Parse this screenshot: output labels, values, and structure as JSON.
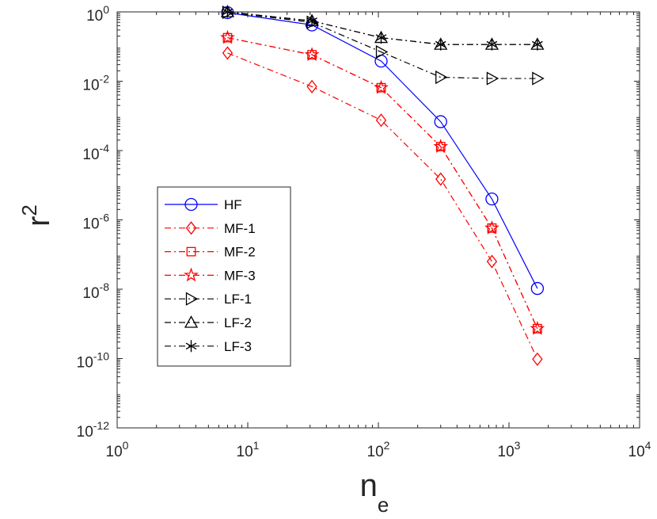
{
  "chart_data": {
    "type": "line",
    "xscale": "log",
    "yscale": "log",
    "xlim": [
      1,
      10000
    ],
    "ylim": [
      1e-12,
      1
    ],
    "xlabel": {
      "base": "n",
      "sub": "e"
    },
    "ylabel": {
      "base": "r",
      "sup": "2"
    },
    "grid": false,
    "legend_location": "lower-left",
    "x_ticks": [
      {
        "value": 1,
        "base": "10",
        "exp": "0"
      },
      {
        "value": 10,
        "base": "10",
        "exp": "1"
      },
      {
        "value": 100,
        "base": "10",
        "exp": "2"
      },
      {
        "value": 1000,
        "base": "10",
        "exp": "3"
      },
      {
        "value": 10000,
        "base": "10",
        "exp": "4"
      }
    ],
    "y_ticks": [
      {
        "value": 1,
        "base": "10",
        "exp": "0"
      },
      {
        "value": 0.01,
        "base": "10",
        "exp": "-2"
      },
      {
        "value": 0.0001,
        "base": "10",
        "exp": "-4"
      },
      {
        "value": 1e-06,
        "base": "10",
        "exp": "-6"
      },
      {
        "value": 1e-08,
        "base": "10",
        "exp": "-8"
      },
      {
        "value": 1e-10,
        "base": "10",
        "exp": "-10"
      },
      {
        "value": 1e-12,
        "base": "10",
        "exp": "-12"
      }
    ],
    "series": [
      {
        "name": "HF",
        "color": "#0000ff",
        "dash": "solid",
        "marker": "circle",
        "x": [
          7,
          31,
          105,
          300,
          740,
          1650
        ],
        "y": [
          0.95,
          0.42,
          0.038,
          0.00068,
          4e-06,
          1.05e-08
        ]
      },
      {
        "name": "MF-1",
        "color": "#ff0000",
        "dash": "dashdot",
        "marker": "diamond",
        "x": [
          7,
          31,
          105,
          300,
          740,
          1650
        ],
        "y": [
          0.065,
          0.007,
          0.00075,
          1.5e-05,
          6.3e-08,
          9.6e-11
        ]
      },
      {
        "name": "MF-2",
        "color": "#ff0000",
        "dash": "dashdot",
        "marker": "square",
        "x": [
          7,
          31,
          105,
          300,
          740,
          1650
        ],
        "y": [
          0.18,
          0.058,
          0.0065,
          0.00013,
          5.8e-07,
          7.3e-10
        ]
      },
      {
        "name": "MF-3",
        "color": "#ff0000",
        "dash": "dashdot",
        "marker": "star",
        "x": [
          7,
          31,
          105,
          300,
          740,
          1650
        ],
        "y": [
          0.18,
          0.058,
          0.0065,
          0.00013,
          5.8e-07,
          7.3e-10
        ]
      },
      {
        "name": "LF-1",
        "color": "#000000",
        "dash": "dashdot",
        "marker": "triangle-right",
        "x": [
          7,
          31,
          105,
          300,
          740,
          1650
        ],
        "y": [
          0.97,
          0.5,
          0.07,
          0.013,
          0.012,
          0.012
        ]
      },
      {
        "name": "LF-2",
        "color": "#000000",
        "dash": "dashdot",
        "marker": "triangle-up",
        "x": [
          7,
          31,
          105,
          300,
          740,
          1650
        ],
        "y": [
          1.0,
          0.55,
          0.18,
          0.115,
          0.115,
          0.115
        ]
      },
      {
        "name": "LF-3",
        "color": "#000000",
        "dash": "dashdot",
        "marker": "asterisk",
        "x": [
          7,
          31,
          105,
          300,
          740,
          1650
        ],
        "y": [
          1.0,
          0.55,
          0.18,
          0.115,
          0.115,
          0.115
        ]
      }
    ]
  }
}
